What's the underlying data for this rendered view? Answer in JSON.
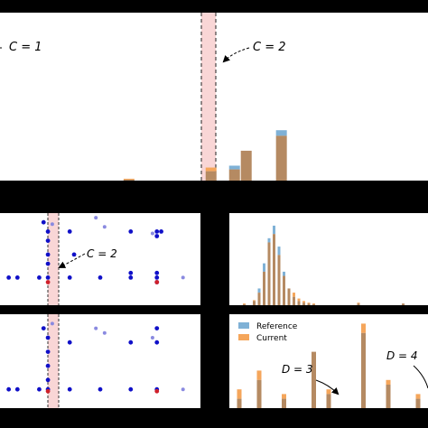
{
  "annotations": {
    "c1": "C = 1",
    "c2_top": "C = 2",
    "c2_mid": "C = 2",
    "d3": "D = 3",
    "d4": "D = 4"
  },
  "legend": {
    "reference": "Reference",
    "current": "Current"
  },
  "colors": {
    "reference": "#7fb1d6",
    "current": "#f5a65b",
    "overlap": "#b58a62",
    "dot_dark": "#1010c8",
    "dot_light": "#8a8ae0",
    "dot_red": "#d0202a",
    "shade": "#f9d6d6",
    "dashed": "#d04040"
  },
  "chart_data": [
    {
      "panel": "top",
      "type": "bar",
      "series": [
        {
          "name": "Reference",
          "x": [
            2.2,
            3.6,
            4.0,
            4.2,
            4.8
          ],
          "values": [
            0.005,
            0.05,
            0.08,
            0.16,
            0.27
          ]
        },
        {
          "name": "Current",
          "x": [
            2.2,
            3.6,
            4.0,
            4.2,
            4.8
          ],
          "values": [
            0.01,
            0.07,
            0.06,
            0.16,
            0.24
          ]
        }
      ],
      "shaded_region": [
        3.6,
        3.85
      ],
      "annotations": [
        "C = 1",
        "C = 2"
      ]
    },
    {
      "panel": "middle-left",
      "type": "scatter",
      "x_dark": [
        0.2,
        0.4,
        0.9,
        1.0,
        1.1,
        1.1,
        1.1,
        1.1,
        1.1,
        1.6,
        1.6,
        1.7,
        2.3,
        3.0,
        3.0,
        3.0,
        3.6,
        3.6,
        3.6,
        3.6,
        3.7,
        3.6
      ],
      "y_dark": [
        0.3,
        0.3,
        0.3,
        0.9,
        0.8,
        0.7,
        0.55,
        0.45,
        0.3,
        0.3,
        0.8,
        0.55,
        0.3,
        0.8,
        0.35,
        0.3,
        0.8,
        0.75,
        0.35,
        0.3,
        0.8,
        0.25
      ],
      "x_light": [
        1.2,
        2.2,
        2.4,
        3.5,
        4.2
      ],
      "y_light": [
        0.88,
        0.95,
        0.85,
        0.78,
        0.3
      ],
      "x_red": [
        1.1,
        3.6
      ],
      "y_red": [
        0.25,
        0.25
      ],
      "shaded_region": [
        1.0,
        1.25
      ],
      "annotations": [
        "C = 2"
      ]
    },
    {
      "panel": "middle-right",
      "type": "bar",
      "series": [
        {
          "name": "Reference",
          "x": [
            1.0,
            1.2,
            1.3,
            1.4,
            1.5,
            1.6,
            1.7,
            1.8,
            1.9,
            2.0,
            2.1,
            2.2,
            2.3,
            2.4,
            3.3,
            4.2
          ],
          "values": [
            0.01,
            0.05,
            0.2,
            0.5,
            0.8,
            0.95,
            0.7,
            0.4,
            0.2,
            0.1,
            0.05,
            0.03,
            0.02,
            0.01,
            0.02,
            0.02
          ]
        },
        {
          "name": "Current",
          "x": [
            1.0,
            1.2,
            1.3,
            1.4,
            1.5,
            1.6,
            1.7,
            1.8,
            1.9,
            2.0,
            2.1,
            2.2,
            2.3,
            2.4,
            3.3,
            4.2
          ],
          "values": [
            0.02,
            0.06,
            0.15,
            0.4,
            0.75,
            0.85,
            0.6,
            0.35,
            0.2,
            0.15,
            0.08,
            0.05,
            0.03,
            0.02,
            0.03,
            0.02
          ]
        }
      ]
    },
    {
      "panel": "bottom-left",
      "type": "scatter",
      "x_dark": [
        0.2,
        0.4,
        0.9,
        1.0,
        1.1,
        1.1,
        1.1,
        1.1,
        1.1,
        1.6,
        1.6,
        2.3,
        3.0,
        3.0,
        3.6,
        3.6,
        3.6
      ],
      "y_dark": [
        0.2,
        0.2,
        0.2,
        0.85,
        0.75,
        0.6,
        0.45,
        0.3,
        0.2,
        0.2,
        0.7,
        0.2,
        0.7,
        0.2,
        0.85,
        0.7,
        0.2
      ],
      "x_light": [
        1.2,
        2.2,
        2.4,
        3.5,
        4.2
      ],
      "y_light": [
        0.9,
        0.85,
        0.8,
        0.75,
        0.2
      ],
      "x_red": [
        1.1,
        3.6
      ],
      "y_red": [
        0.18,
        0.18
      ],
      "shaded_region": [
        1.0,
        1.25
      ]
    },
    {
      "panel": "bottom-right",
      "type": "bar",
      "series": [
        {
          "name": "Reference",
          "x": [
            0.2,
            0.6,
            1.1,
            1.7,
            2.0,
            2.7,
            3.2,
            3.8
          ],
          "values": [
            0.1,
            0.3,
            0.1,
            0.6,
            0.15,
            0.8,
            0.25,
            0.1
          ]
        },
        {
          "name": "Current",
          "x": [
            0.2,
            0.6,
            1.1,
            1.7,
            2.0,
            2.7,
            3.2,
            3.8
          ],
          "values": [
            0.2,
            0.4,
            0.15,
            0.6,
            0.2,
            0.9,
            0.3,
            0.15
          ]
        }
      ],
      "legend": [
        "Reference",
        "Current"
      ],
      "annotations": [
        "D = 3",
        "D = 4"
      ]
    }
  ]
}
